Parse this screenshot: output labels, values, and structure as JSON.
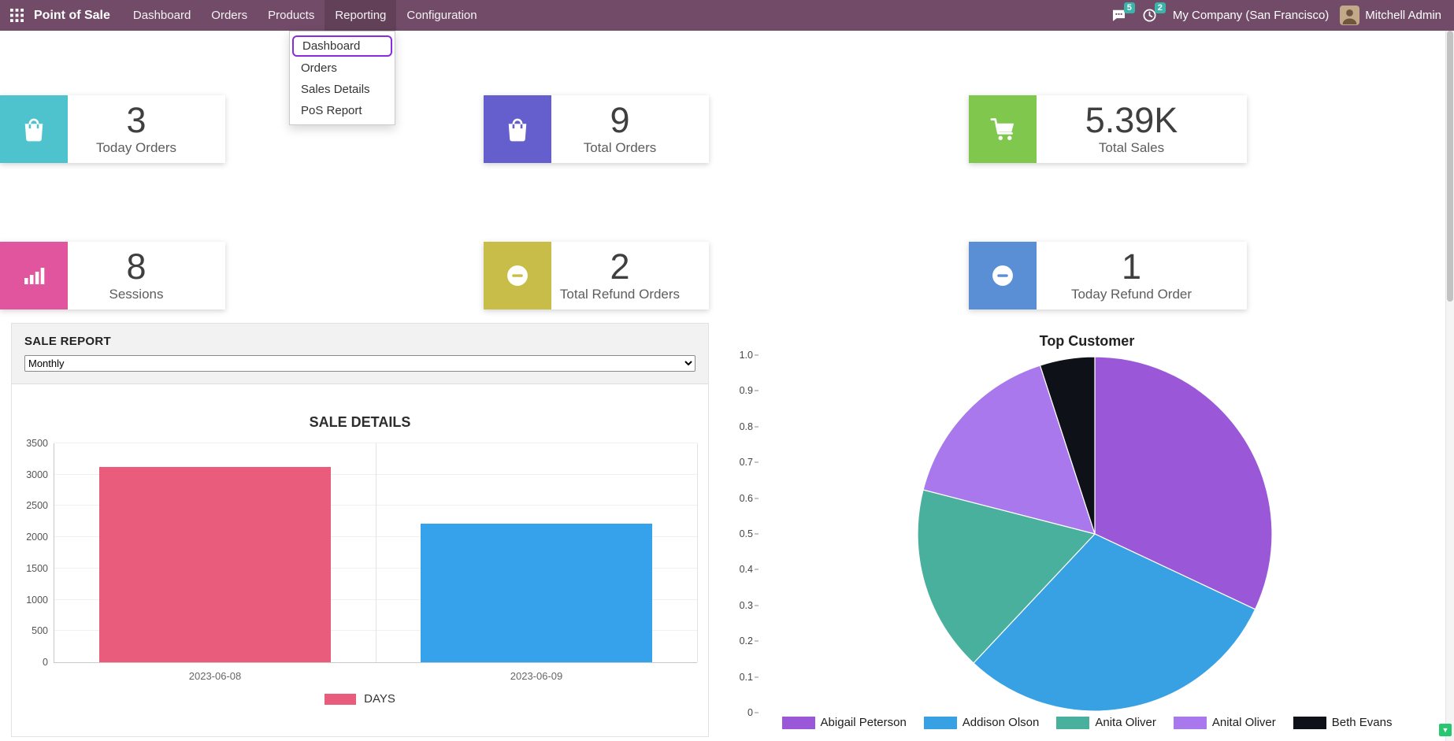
{
  "ui_colors": {
    "navbar_bg": "#714B67",
    "badge_bg": "#3ab3ab",
    "menu_highlight": "#8a2be2",
    "scroll_button_bg": "#28c76f"
  },
  "navbar": {
    "brand": "Point of Sale",
    "items": [
      {
        "label": "Dashboard",
        "active": false
      },
      {
        "label": "Orders",
        "active": false
      },
      {
        "label": "Products",
        "active": false
      },
      {
        "label": "Reporting",
        "active": true
      },
      {
        "label": "Configuration",
        "active": false
      }
    ],
    "messages_badge": "5",
    "activities_badge": "2",
    "company": "My Company (San Francisco)",
    "user": "Mitchell Admin"
  },
  "reporting_menu": {
    "items": [
      {
        "label": "Dashboard",
        "highlighted": true
      },
      {
        "label": "Orders",
        "highlighted": false
      },
      {
        "label": "Sales Details",
        "highlighted": false
      },
      {
        "label": "PoS Report",
        "highlighted": false
      }
    ]
  },
  "kpis": [
    {
      "value": "3",
      "label": "Today Orders",
      "color": "#4fc3cd",
      "icon": "shopping-bag"
    },
    {
      "value": "9",
      "label": "Total Orders",
      "color": "#655fce",
      "icon": "shopping-bag"
    },
    {
      "value": "5.39K",
      "label": "Total Sales",
      "color": "#7fc84d",
      "icon": "shopping-cart"
    },
    {
      "value": "8",
      "label": "Sessions",
      "color": "#e0559d",
      "icon": "bar-chart"
    },
    {
      "value": "2",
      "label": "Total Refund Orders",
      "color": "#c9bd4a",
      "icon": "minus-circle"
    },
    {
      "value": "1",
      "label": "Today Refund Order",
      "color": "#5a8fd6",
      "icon": "minus-circle"
    }
  ],
  "sale_report": {
    "title": "SALE REPORT",
    "period_selected": "Monthly"
  },
  "chart_data": [
    {
      "type": "bar",
      "title": "SALE DETAILS",
      "categories": [
        "2023-06-08",
        "2023-06-09"
      ],
      "values": [
        3120,
        2220
      ],
      "bar_colors": [
        "#e95c7b",
        "#36a2eb"
      ],
      "legend": [
        {
          "label": "DAYS",
          "color": "#e95c7b"
        }
      ],
      "xlabel": "",
      "ylabel": "",
      "ylim": [
        0,
        3500
      ],
      "ytick_step": 500,
      "grid": true,
      "legend_position": "bottom"
    },
    {
      "type": "pie",
      "title": "Top Customer",
      "labels": [
        "Abigail Peterson",
        "Addison Olson",
        "Anita Oliver",
        "Anital Oliver",
        "Beth Evans"
      ],
      "values": [
        0.32,
        0.3,
        0.17,
        0.16,
        0.05
      ],
      "colors": [
        "#9a58d8",
        "#38a1e4",
        "#48b09d",
        "#a978ec",
        "#0e1117"
      ],
      "axis_ticks": [
        "0",
        "0.1",
        "0.2",
        "0.3",
        "0.4",
        "0.5",
        "0.6",
        "0.7",
        "0.8",
        "0.9",
        "1.0"
      ],
      "ylim": [
        0,
        1
      ],
      "legend_position": "bottom"
    }
  ]
}
